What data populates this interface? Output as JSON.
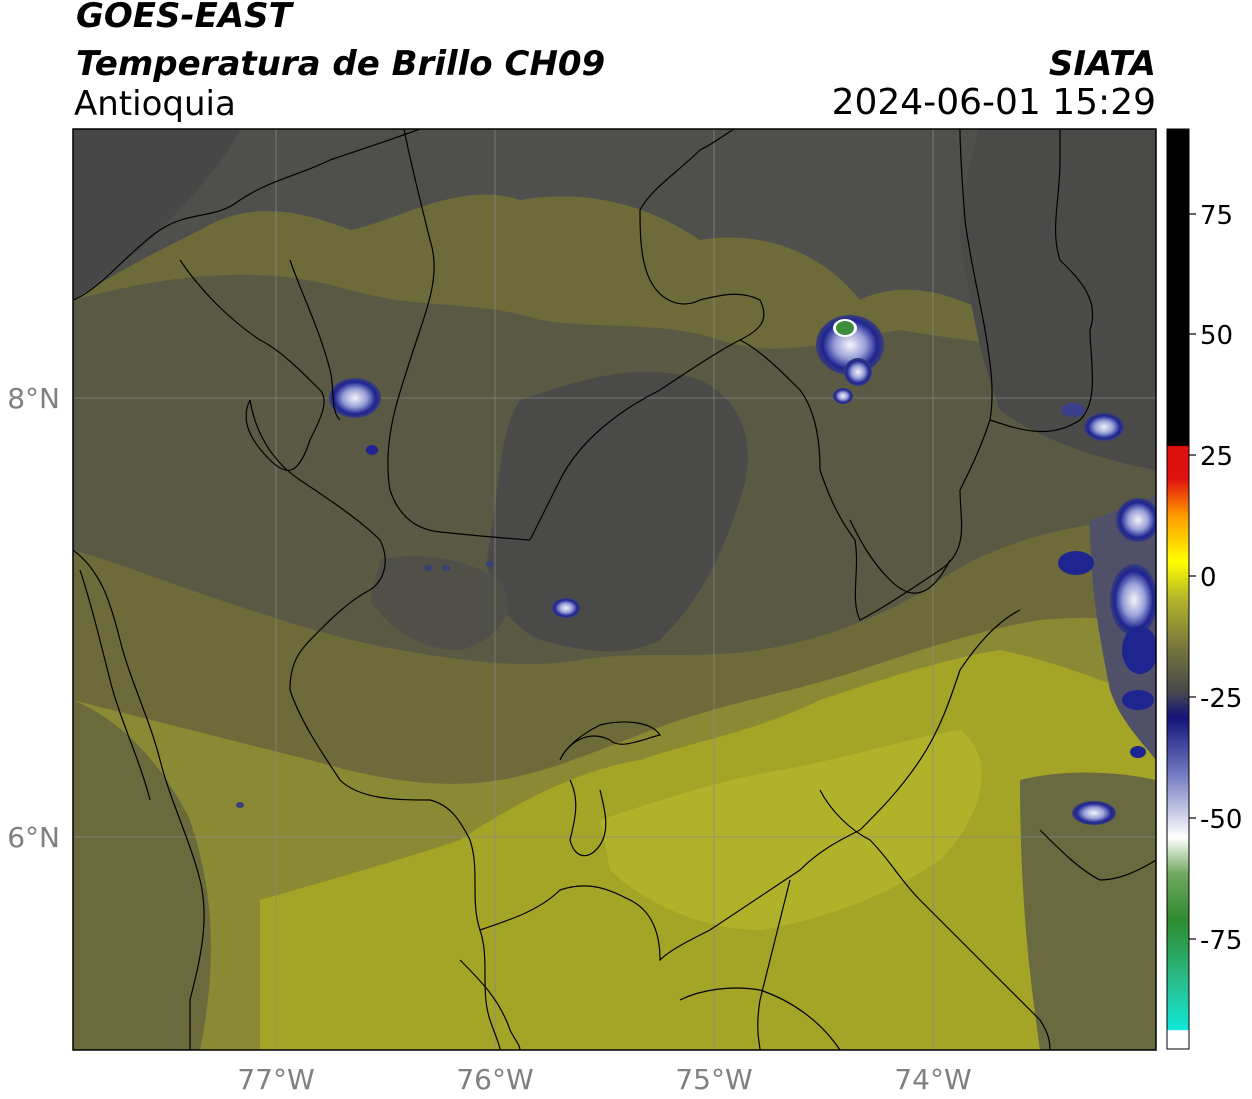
{
  "header": {
    "satellite": "GOES-EAST",
    "product": "Temperatura de Brillo CH09",
    "region": "Antioquia",
    "organization": "SIATA",
    "datetime": "2024-06-01 15:29"
  },
  "axes": {
    "lat_labels": [
      "8°N",
      "6°N"
    ],
    "lon_labels": [
      "77°W",
      "76°W",
      "75°W",
      "74°W"
    ]
  },
  "colorbar": {
    "tick_labels": [
      "75",
      "50",
      "25",
      "0",
      "-25",
      "-50",
      "-75"
    ],
    "colors": {
      "warm": "#000000",
      "red": "#e01010",
      "orange": "#ff9a00",
      "yellow": "#ffff00",
      "olive": "#b6b62a",
      "gray": "#4a4a4a",
      "navy": "#14147a",
      "white": "#ffffff",
      "green": "#2e8b2e",
      "cyan": "#10e8d8"
    }
  },
  "map": {
    "colors": {
      "dark_gray": "#4c4c4c",
      "gray_olive": "#62623f",
      "olive": "#7d7a3a",
      "light_olive": "#9a9a2e",
      "yellow_olive": "#a8a821",
      "storm_blue": "#1e2490",
      "storm_white": "#f0f0f8",
      "storm_green": "#3c8c3c",
      "border": "#000000",
      "gridline": "#8a8a8a"
    }
  }
}
